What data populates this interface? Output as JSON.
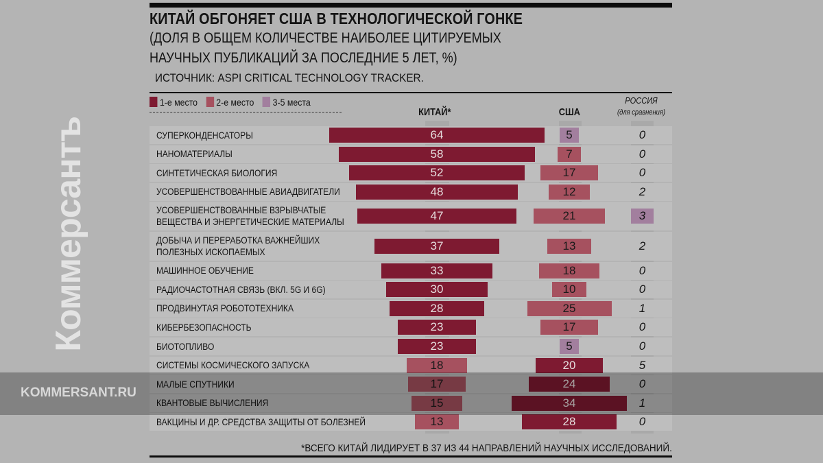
{
  "header": {
    "title": "КИТАЙ ОБГОНЯЕТ США В ТЕХНОЛОГИЧЕСКОЙ ГОНКЕ",
    "subtitle_line1": "(ДОЛЯ В ОБЩЕМ КОЛИЧЕСТВЕ НАИБОЛЕЕ ЦИТИРУЕМЫХ",
    "subtitle_line2": "НАУЧНЫХ ПУБЛИКАЦИЙ ЗА ПОСЛЕДНИЕ 5 ЛЕТ, %)",
    "source": "ИСТОЧНИК: ASPI CRITICAL TECHNOLOGY TRACKER."
  },
  "legend": [
    {
      "label": "1-е место",
      "color": "#7e1a31"
    },
    {
      "label": "2-е место",
      "color": "#a6515f"
    },
    {
      "label": "3-5 места",
      "color": "#a27f9e"
    }
  ],
  "columns": {
    "china": "КИТАЙ*",
    "usa": "США",
    "russia": "РОССИЯ",
    "russia_note": "(для сравнения)"
  },
  "chart_data": {
    "type": "bar",
    "title": "КИТАЙ ОБГОНЯЕТ США В ТЕХНОЛОГИЧЕСКОЙ ГОНКЕ",
    "unit": "%",
    "categories": [
      [
        "СУПЕРКОНДЕНСАТОРЫ"
      ],
      [
        "НАНОМАТЕРИАЛЫ"
      ],
      [
        "СИНТЕТИЧЕСКАЯ БИОЛОГИЯ"
      ],
      [
        "УСОВЕРШЕНСТВОВАННЫЕ АВИАДВИГАТЕЛИ"
      ],
      [
        "УСОВЕРШЕНСТВОВАННЫЕ ВЗРЫВЧАТЫЕ",
        "ВЕЩЕСТВА И ЭНЕРГЕТИЧЕСКИЕ МАТЕРИАЛЫ"
      ],
      [
        "ДОБЫЧА И ПЕРЕРАБОТКА ВАЖНЕЙШИХ",
        "ПОЛЕЗНЫХ ИСКОПАЕМЫХ"
      ],
      [
        "МАШИННОЕ ОБУЧЕНИЕ"
      ],
      [
        "РАДИОЧАСТОТНАЯ СВЯЗЬ (ВКЛ. 5G И 6G)"
      ],
      [
        "ПРОДВИНУТАЯ РОБОТОТЕХНИКА"
      ],
      [
        "КИБЕРБЕЗОПАСНОСТЬ"
      ],
      [
        "БИОТОПЛИВО"
      ],
      [
        "СИСТЕМЫ КОСМИЧЕСКОГО ЗАПУСКА"
      ],
      [
        "МАЛЫЕ СПУТНИКИ"
      ],
      [
        "КВАНТОВЫЕ ВЫЧИСЛЕНИЯ"
      ],
      [
        "ВАКЦИНЫ И ДР. СРЕДСТВА ЗАЩИТЫ ОТ БОЛЕЗНЕЙ"
      ]
    ],
    "series": [
      {
        "name": "КИТАЙ",
        "values": [
          64,
          58,
          52,
          48,
          47,
          37,
          33,
          30,
          28,
          23,
          23,
          18,
          17,
          15,
          13
        ],
        "rank": [
          1,
          1,
          1,
          1,
          1,
          1,
          1,
          1,
          1,
          1,
          1,
          2,
          2,
          2,
          2
        ]
      },
      {
        "name": "США",
        "values": [
          5,
          7,
          17,
          12,
          21,
          13,
          18,
          10,
          25,
          17,
          5,
          20,
          24,
          34,
          28
        ],
        "rank": [
          3,
          2,
          2,
          2,
          2,
          2,
          2,
          2,
          2,
          2,
          3,
          1,
          1,
          1,
          1
        ]
      },
      {
        "name": "РОССИЯ",
        "values": [
          0,
          0,
          0,
          2,
          3,
          2,
          0,
          0,
          1,
          0,
          0,
          5,
          0,
          1,
          0
        ],
        "rank": [
          0,
          0,
          0,
          0,
          3,
          0,
          0,
          0,
          0,
          0,
          0,
          0,
          0,
          0,
          0
        ]
      }
    ]
  },
  "footnote": "*ВСЕГО КИТАЙ ЛИДИРУЕТ В 37 ИЗ 44 НАПРАВЛЕНИЙ НАУЧНЫХ ИССЛЕДОВАНИЙ.",
  "watermark": {
    "logo": "Коммерсантъ",
    "url": "KOMMERSANT.RU"
  }
}
